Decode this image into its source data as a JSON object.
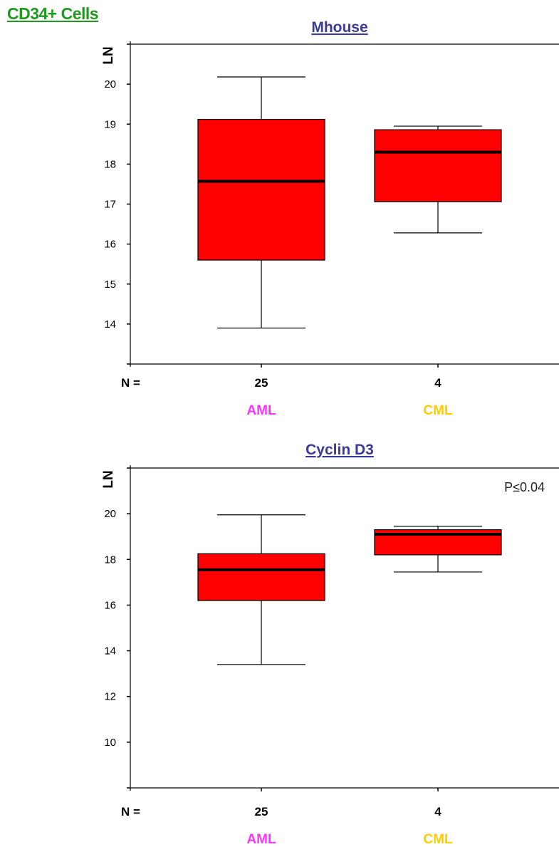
{
  "page_title": "CD34+ Cells",
  "colors": {
    "title": "#1f9a1f",
    "panel_title": "#3a3a9a",
    "box_fill": "#ff0000",
    "aml": "#ff33ff",
    "cml": "#ffcc00"
  },
  "chart_data": [
    {
      "type": "box",
      "title": "Mhouse",
      "ylabel": "LN",
      "ylim": [
        13.0,
        21.0
      ],
      "yticks": [
        14,
        15,
        16,
        17,
        18,
        19,
        20
      ],
      "n_prefix": "N =",
      "categories": [
        "AML",
        "CML"
      ],
      "n": [
        "25",
        "4"
      ],
      "boxes": [
        {
          "min": 13.9,
          "q1": 15.6,
          "median": 17.57,
          "q3": 19.12,
          "max": 20.18
        },
        {
          "min": 16.28,
          "q1": 17.06,
          "median": 18.3,
          "q3": 18.86,
          "max": 18.95
        }
      ],
      "annotation": ""
    },
    {
      "type": "box",
      "title": "Cyclin D3",
      "ylabel": "LN",
      "ylim": [
        8.0,
        22.0
      ],
      "yticks": [
        10,
        12,
        14,
        16,
        18,
        20
      ],
      "n_prefix": "N =",
      "categories": [
        "AML",
        "CML"
      ],
      "n": [
        "25",
        "4"
      ],
      "boxes": [
        {
          "min": 13.4,
          "q1": 16.2,
          "median": 17.55,
          "q3": 18.25,
          "max": 19.95
        },
        {
          "min": 17.45,
          "q1": 18.2,
          "median": 19.1,
          "q3": 19.3,
          "max": 19.45
        }
      ],
      "annotation": "P≤0.04"
    }
  ]
}
